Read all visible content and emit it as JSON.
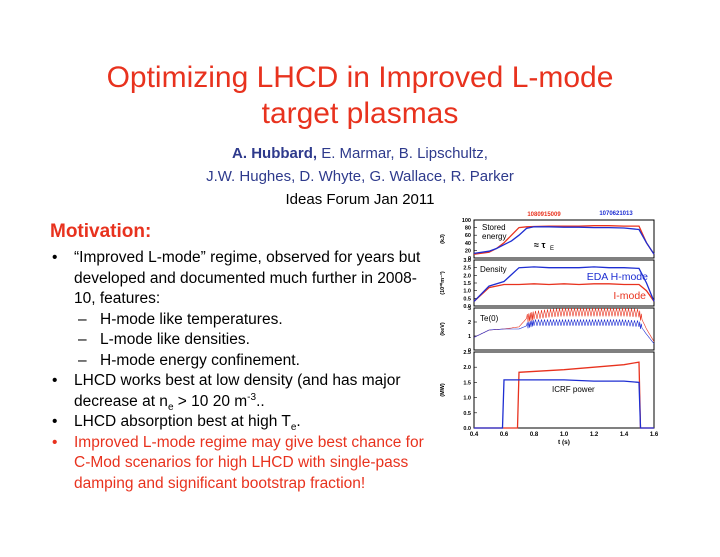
{
  "slide": {
    "title_line1": "Optimizing LHCD in Improved L-mode",
    "title_line2": "target plasmas",
    "authors_lead": "A. Hubbard,",
    "authors_rest1": " E. Marmar, B. Lipschultz,",
    "authors_line2": "J.W. Hughes, D. Whyte, G. Wallace, R. Parker",
    "forum": "Ideas Forum Jan 2011",
    "motivation_heading": "Motivation:",
    "bullet1": "“Improved L-mode” regime, observed for years but developed and documented much further in 2008-10, features:",
    "sub1": "H-mode like temperatures.",
    "sub2": "L-mode like densities.",
    "sub3": "H-mode energy confinement.",
    "bullet2_pre": "LHCD works best at low density (and has major decrease at n",
    "bullet2_sub": "e",
    "bullet2_mid": " > 10 20 m",
    "bullet2_sup": "-3",
    "bullet2_post": "..",
    "bullet3_pre": "LHCD absorption best at high T",
    "bullet3_sub": "e",
    "bullet3_post": ".",
    "bullet4": "Improved L-mode regime may give best chance for C-Mod scenarios for high LHCD with single-pass damping and significant bootstrap fraction!",
    "bullet_glyph": "•",
    "sub_glyph": "–"
  },
  "chart_data": {
    "type": "line",
    "shots": [
      {
        "label": "1080915009",
        "color": "#e8321e"
      },
      {
        "label": "1070621013",
        "color": "#1e2ed2"
      }
    ],
    "x_range": [
      0.4,
      1.6
    ],
    "x_ticks": [
      "0.4",
      "0.6",
      "0.8",
      "1.0",
      "1.2",
      "1.4",
      "1.6"
    ],
    "xlabel": "t (s)",
    "panels": [
      {
        "unit": "(kJ)",
        "ylim": [
          0,
          100
        ],
        "ticks": [
          "100",
          "80",
          "60",
          "40",
          "20",
          "0"
        ],
        "annotations": [
          "Stored",
          "energy",
          "≈ τ",
          "E"
        ],
        "series": [
          {
            "shot": "1080915009",
            "x": [
              0.4,
              0.5,
              0.55,
              0.6,
              0.65,
              0.7,
              0.75,
              0.8,
              0.9,
              1.0,
              1.1,
              1.2,
              1.3,
              1.4,
              1.5,
              1.55,
              1.6
            ],
            "y": [
              10,
              15,
              25,
              40,
              60,
              80,
              82,
              83,
              84,
              84,
              84,
              85,
              85,
              84,
              84,
              40,
              10
            ]
          },
          {
            "shot": "1070621013",
            "x": [
              0.4,
              0.5,
              0.55,
              0.6,
              0.65,
              0.7,
              0.75,
              0.8,
              0.9,
              1.0,
              1.1,
              1.2,
              1.3,
              1.4,
              1.5,
              1.55,
              1.6
            ],
            "y": [
              12,
              18,
              25,
              35,
              45,
              60,
              78,
              82,
              82,
              81,
              81,
              80,
              80,
              79,
              75,
              40,
              10
            ]
          }
        ]
      },
      {
        "unit": "(10²⁰m⁻³)",
        "ylim": [
          0,
          3
        ],
        "ticks": [
          "3.0",
          "2.5",
          "2.0",
          "1.5",
          "1.0",
          "0.5",
          "0.0"
        ],
        "annotations": [
          "Density",
          "EDA H-mode",
          "I-mode"
        ],
        "series": [
          {
            "shot": "1080915009",
            "x": [
              0.4,
              0.5,
              0.6,
              0.7,
              0.8,
              0.9,
              1.0,
              1.1,
              1.2,
              1.3,
              1.4,
              1.5,
              1.55,
              1.6
            ],
            "y": [
              0.3,
              1.2,
              1.4,
              1.4,
              1.45,
              1.4,
              1.45,
              1.4,
              1.45,
              1.45,
              1.4,
              1.4,
              1.0,
              0.3
            ]
          },
          {
            "shot": "1070621013",
            "x": [
              0.4,
              0.5,
              0.6,
              0.7,
              0.8,
              0.9,
              1.0,
              1.1,
              1.2,
              1.3,
              1.4,
              1.5,
              1.55,
              1.6
            ],
            "y": [
              0.3,
              1.3,
              1.6,
              2.5,
              2.55,
              2.5,
              2.5,
              2.5,
              2.55,
              2.5,
              2.5,
              2.45,
              1.5,
              0.3
            ]
          }
        ]
      },
      {
        "unit": "(keV)",
        "ylim": [
          0,
          4
        ],
        "ticks": [
          "3",
          "2",
          "1",
          "0"
        ],
        "annotations": [
          "Te(0)"
        ],
        "series": [
          {
            "shot": "1080915009",
            "x": [
              0.4,
              0.5,
              0.6,
              0.7,
              0.75,
              0.8,
              0.9,
              1.0,
              1.1,
              1.2,
              1.3,
              1.4,
              1.5,
              1.55,
              1.6
            ],
            "y": [
              1.2,
              1.9,
              2.0,
              2.2,
              3.0,
              3.3,
              3.5,
              3.6,
              3.6,
              3.6,
              3.6,
              3.6,
              3.5,
              2.0,
              0.8
            ],
            "sawtooth": 0.4
          },
          {
            "shot": "1070621013",
            "x": [
              0.4,
              0.5,
              0.6,
              0.7,
              0.75,
              0.8,
              0.9,
              1.0,
              1.1,
              1.2,
              1.3,
              1.4,
              1.5,
              1.55,
              1.6
            ],
            "y": [
              1.2,
              1.9,
              2.0,
              2.0,
              2.3,
              2.6,
              2.6,
              2.6,
              2.6,
              2.6,
              2.6,
              2.6,
              2.5,
              1.5,
              0.6
            ],
            "sawtooth": 0.3
          }
        ]
      },
      {
        "unit": "(MW)",
        "ylim": [
          0,
          3
        ],
        "ticks": [
          "2.5",
          "2.0",
          "1.5",
          "1.0",
          "0.5",
          "0.0"
        ],
        "annotations": [
          "ICRF power"
        ],
        "series": [
          {
            "shot": "1080915009",
            "x": [
              0.4,
              0.69,
              0.7,
              1.0,
              1.2,
              1.4,
              1.5,
              1.51,
              1.6
            ],
            "y": [
              0,
              0,
              2.2,
              2.3,
              2.4,
              2.5,
              2.6,
              0,
              0
            ]
          },
          {
            "shot": "1070621013",
            "x": [
              0.4,
              0.59,
              0.6,
              0.8,
              1.0,
              1.2,
              1.4,
              1.5,
              1.51,
              1.6
            ],
            "y": [
              0,
              0,
              1.9,
              1.9,
              1.9,
              1.85,
              1.85,
              1.8,
              0,
              0
            ]
          }
        ]
      }
    ]
  }
}
